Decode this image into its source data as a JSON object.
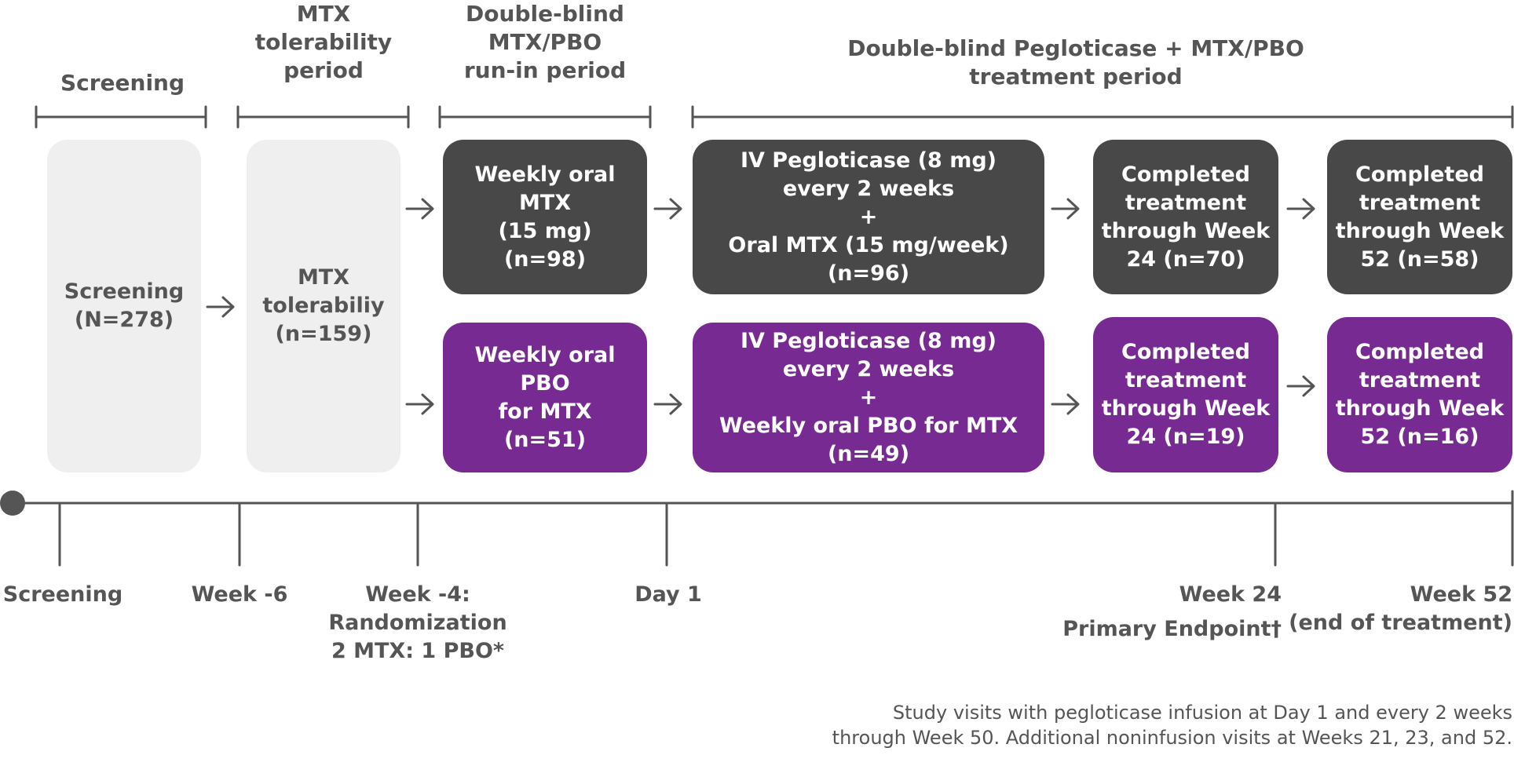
{
  "phases": {
    "screening": "Screening",
    "tolerability": "MTX\ntolerability\nperiod",
    "runin": "Double-blind\nMTX/PBO\nrun-in period",
    "treatment": "Double-blind Pegloticase + MTX/PBO\ntreatment period"
  },
  "boxes": {
    "screening": "Screening\n(N=278)",
    "tolerability": "MTX\ntolerabiliy\n(n=159)",
    "mtx_runin": "Weekly oral\nMTX\n(15 mg)\n(n=98)",
    "mtx_treatment": "IV Pegloticase (8 mg)\nevery 2 weeks\n+\nOral MTX (15 mg/week) (n=96)",
    "mtx_week24": "Completed\ntreatment\nthrough Week\n24 (n=70)",
    "mtx_week52": "Completed\ntreatment\nthrough Week\n52 (n=58)",
    "pbo_runin": "Weekly oral\nPBO\nfor MTX\n(n=51)",
    "pbo_treatment": "IV Pegloticase (8 mg)\nevery 2 weeks\n+\nWeekly oral PBO for MTX (n=49)",
    "pbo_week24": "Completed\ntreatment\nthrough Week\n24 (n=19)",
    "pbo_week52": "Completed\ntreatment\nthrough Week\n52 (n=16)"
  },
  "timeline": {
    "screening": "Screening",
    "week_minus6": "Week -6",
    "week_minus4": "Week -4:\nRandomization\n2 MTX: 1 PBO*",
    "day1": "Day 1",
    "week24": "Week 24",
    "week24_sub": "Primary Endpoint†",
    "week52": "Week 52\n(end of treatment)"
  },
  "footnote": "Study visits with pegloticase infusion at Day 1 and every 2 weeks\nthrough Week 50. Additional noninfusion visits at Weeks 21, 23, and 52.",
  "colors": {
    "dark": "#484848",
    "purple": "#772a91",
    "light": "#efefef",
    "line": "#555555"
  }
}
